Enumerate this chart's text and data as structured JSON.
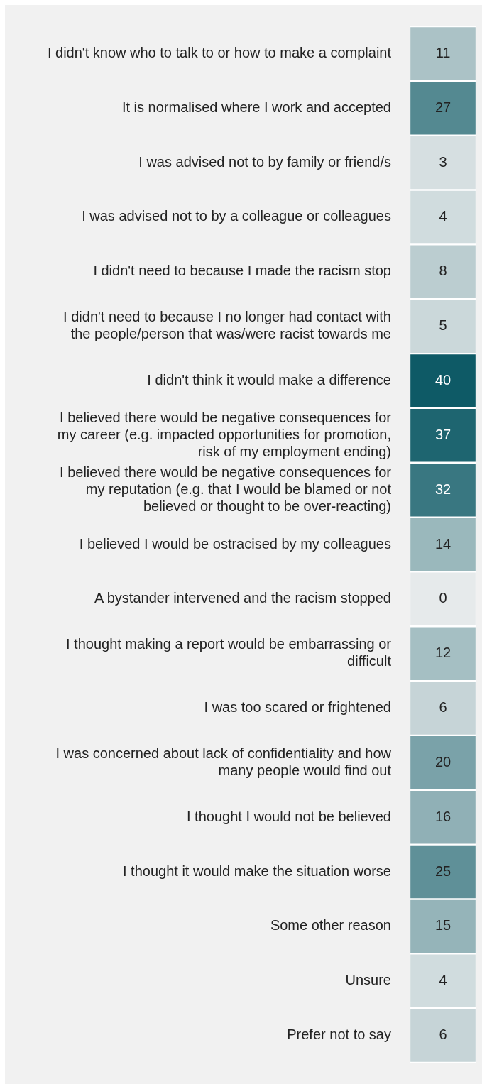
{
  "chart_data": {
    "type": "heatmap",
    "categories": [
      null
    ],
    "y_categories": [
      "I didn't know who to talk to or how to make a complaint",
      "It is normalised where I work and accepted",
      "I was advised not to by family or friend/s",
      "I was advised not to by a colleague or colleagues",
      "I didn't need to because I made the racism stop",
      "I didn't need to because I no longer had contact with the people/person that was/were racist towards me",
      "I didn't think it would make a difference",
      "I believed there would be negative consequences for my career (e.g. impacted opportunities for promotion, risk of my employment ending)",
      "I believed there would be negative consequences for my reputation (e.g. that I would be blamed or not believed or thought to be over-reacting)",
      "I believed I would be ostracised by my colleagues",
      "A bystander intervened and the racism stopped",
      "I thought making a report would be embarrassing or difficult",
      "I was too scared or frightened",
      "I was concerned about lack of confidentiality and how many people would find out",
      "I thought I would not be believed",
      "I thought it would make the situation worse",
      "Some other reason",
      "Unsure",
      "Prefer not to say"
    ],
    "data_labels": true,
    "cells": [
      [
        11
      ],
      [
        27
      ],
      [
        3
      ],
      [
        4
      ],
      [
        8
      ],
      [
        5
      ],
      [
        40
      ],
      [
        37
      ],
      [
        32
      ],
      [
        14
      ],
      [
        0
      ],
      [
        12
      ],
      [
        6
      ],
      [
        20
      ],
      [
        16
      ],
      [
        25
      ],
      [
        15
      ],
      [
        4
      ],
      [
        6
      ]
    ]
  }
}
